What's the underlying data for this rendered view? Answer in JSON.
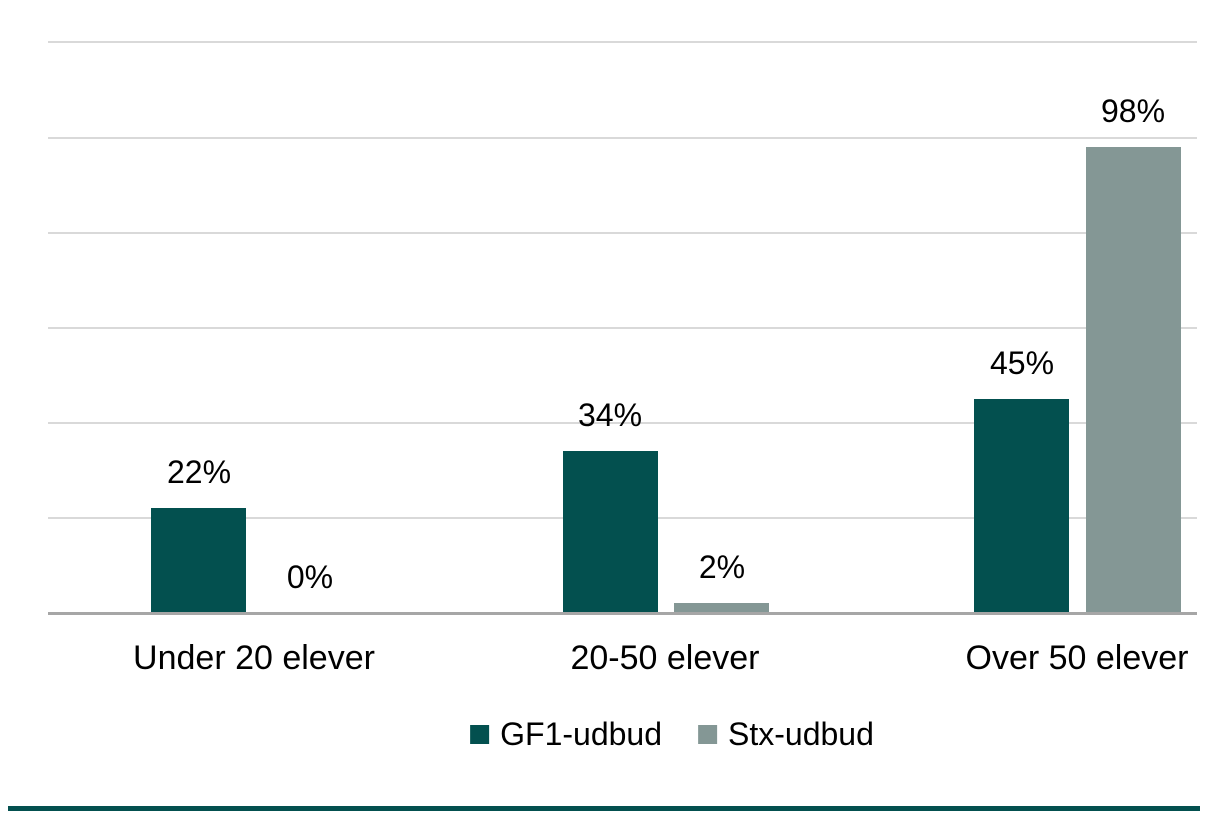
{
  "chart_data": {
    "type": "bar",
    "title": "",
    "categories": [
      "Under 20 elever",
      "20-50 elever",
      "Over 50 elever"
    ],
    "series": [
      {
        "name": "GF1-udbud",
        "color": "#03504F",
        "values": [
          22,
          34,
          45
        ]
      },
      {
        "name": "Stx-udbud",
        "color": "#849795",
        "values": [
          0,
          2,
          98
        ]
      }
    ],
    "value_labels": [
      [
        "22%",
        "34%",
        "45%"
      ],
      [
        "0%",
        "2%",
        "98%"
      ]
    ],
    "xlabel": "",
    "ylabel": "",
    "ylim": [
      0,
      120
    ],
    "grid": true,
    "grid_step_pct": 20,
    "gridline_color": "#D9D9D9",
    "axis_line_color": "#A6A6A6",
    "legend_position": "bottom",
    "accent_rule_color": "#03504F",
    "background_color": "#FFFFFF"
  }
}
